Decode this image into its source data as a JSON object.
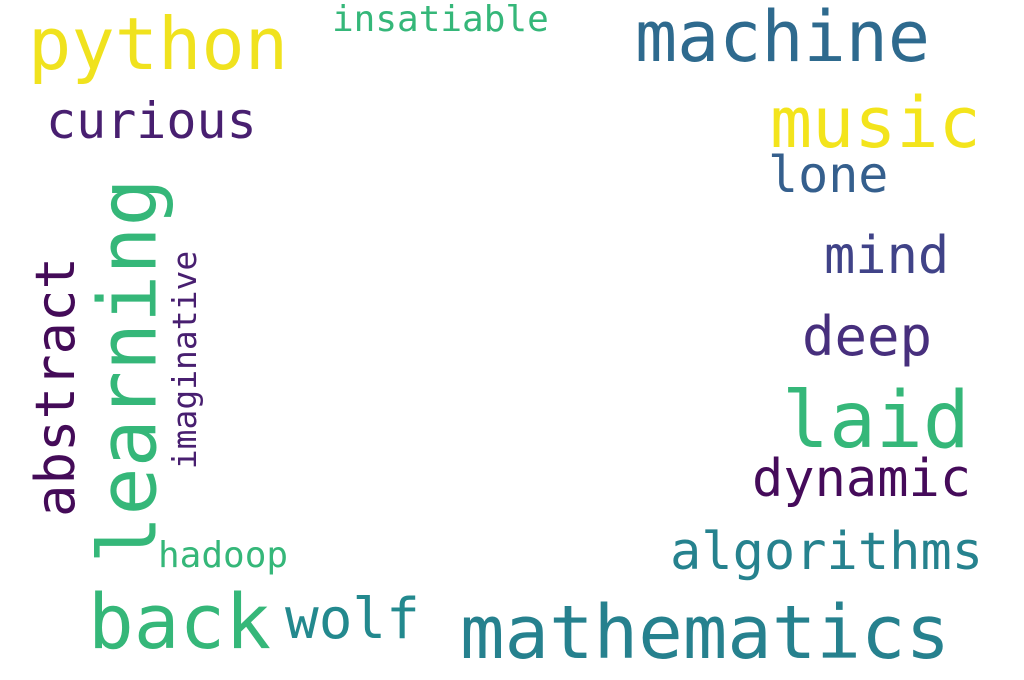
{
  "words": [
    {
      "text": "python",
      "color": "#f0e21e",
      "orientation": "horizontal"
    },
    {
      "text": "insatiable",
      "color": "#35b779",
      "orientation": "horizontal"
    },
    {
      "text": "machine",
      "color": "#2e6a8e",
      "orientation": "horizontal"
    },
    {
      "text": "music",
      "color": "#f3e41c",
      "orientation": "horizontal"
    },
    {
      "text": "curious",
      "color": "#481f70",
      "orientation": "horizontal"
    },
    {
      "text": "lone",
      "color": "#355f8d",
      "orientation": "horizontal"
    },
    {
      "text": "mind",
      "color": "#404388",
      "orientation": "horizontal"
    },
    {
      "text": "deep",
      "color": "#472f7d",
      "orientation": "horizontal"
    },
    {
      "text": "laid",
      "color": "#35b779",
      "orientation": "horizontal"
    },
    {
      "text": "dynamic",
      "color": "#450b5a",
      "orientation": "horizontal"
    },
    {
      "text": "algorithms",
      "color": "#26828e",
      "orientation": "horizontal"
    },
    {
      "text": "hadoop",
      "color": "#35b779",
      "orientation": "horizontal"
    },
    {
      "text": "back",
      "color": "#35b779",
      "orientation": "horizontal"
    },
    {
      "text": "wolf",
      "color": "#23898e",
      "orientation": "horizontal"
    },
    {
      "text": "mathematics",
      "color": "#26818e",
      "orientation": "horizontal"
    },
    {
      "text": "learning",
      "color": "#35b779",
      "orientation": "vertical"
    },
    {
      "text": "abstract",
      "color": "#440b58",
      "orientation": "vertical"
    },
    {
      "text": "imaginative",
      "color": "#481f70",
      "orientation": "vertical"
    }
  ]
}
